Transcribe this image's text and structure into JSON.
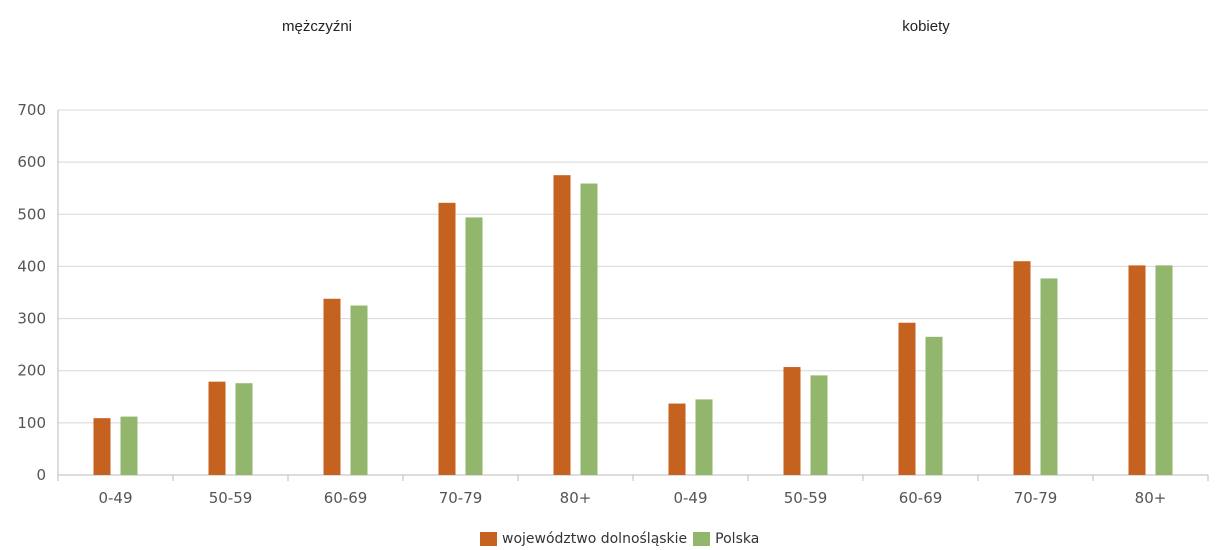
{
  "chart_data": {
    "type": "bar",
    "groups": [
      {
        "label": "mężczyźni",
        "categories": [
          "0-49",
          "50-59",
          "60-69",
          "70-79",
          "80+"
        ]
      },
      {
        "label": "kobiety",
        "categories": [
          "0-49",
          "50-59",
          "60-69",
          "70-79",
          "80+"
        ]
      }
    ],
    "categories": [
      "0-49",
      "50-59",
      "60-69",
      "70-79",
      "80+",
      "0-49",
      "50-59",
      "60-69",
      "70-79",
      "80+"
    ],
    "series": [
      {
        "name": "województwo dolnośląskie",
        "color": "#c5621f",
        "values": [
          109,
          179,
          338,
          522,
          575,
          137,
          207,
          292,
          410,
          402
        ]
      },
      {
        "name": "Polska",
        "color": "#92b76c",
        "values": [
          112,
          176,
          325,
          494,
          559,
          145,
          191,
          265,
          377,
          402
        ]
      }
    ],
    "ylim": [
      0,
      700
    ],
    "yticks": [
      0,
      100,
      200,
      300,
      400,
      500,
      600,
      700
    ],
    "grid": true,
    "legend_position": "bottom-center"
  }
}
